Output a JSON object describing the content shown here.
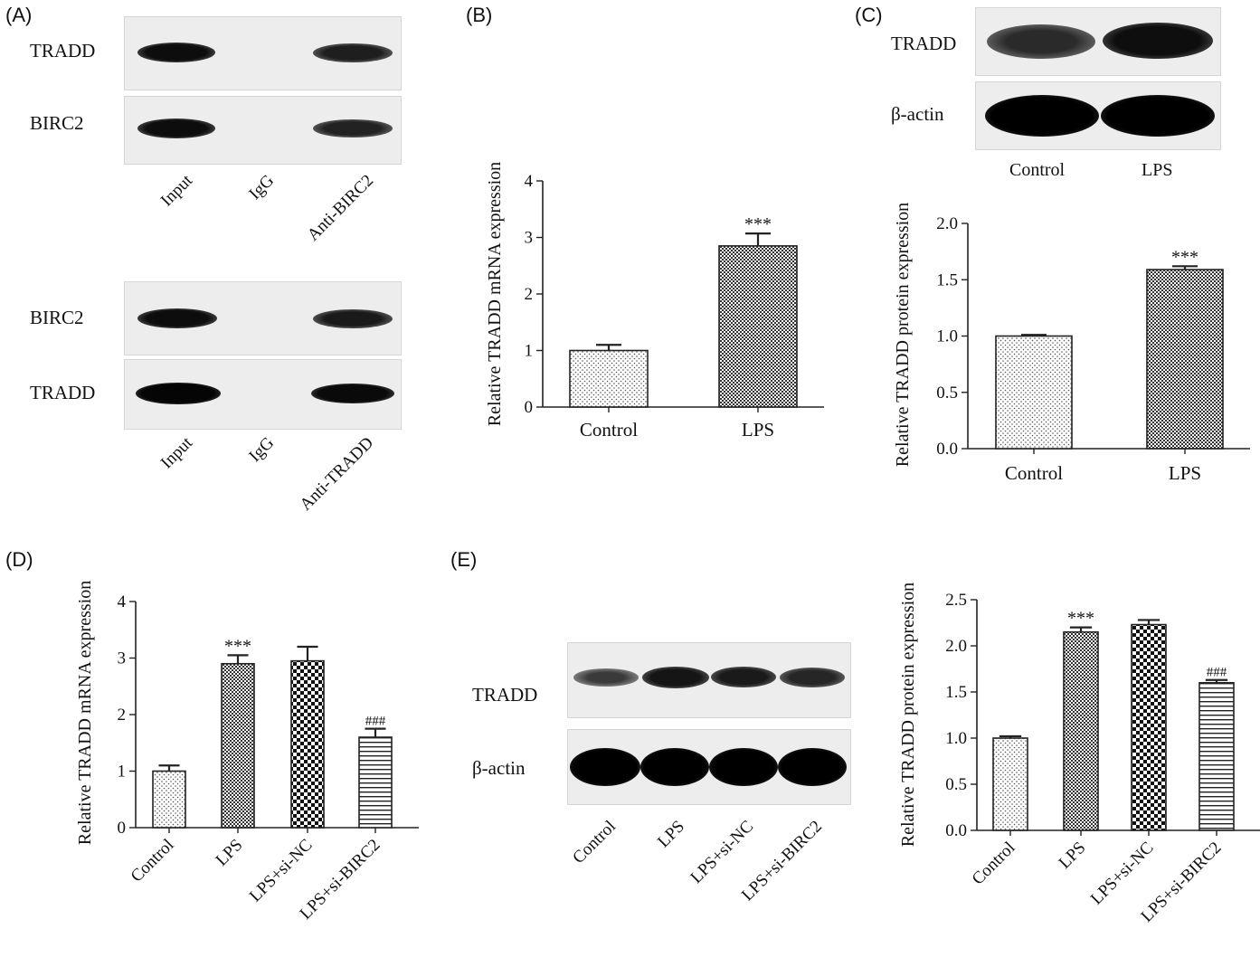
{
  "panels": {
    "A": {
      "label": "(A)",
      "blot1": {
        "rows": [
          "TRADD",
          "BIRC2"
        ],
        "lanes": [
          "Input",
          "IgG",
          "Anti-BIRC2"
        ]
      },
      "blot2": {
        "rows": [
          "BIRC2",
          "TRADD"
        ],
        "lanes": [
          "Input",
          "IgG",
          "Anti-TRADD"
        ]
      }
    },
    "B": {
      "label": "(B)"
    },
    "C": {
      "label": "(C)",
      "blot": {
        "rows": [
          "TRADD",
          "β-actin"
        ],
        "lanes": [
          "Control",
          "LPS"
        ]
      }
    },
    "D": {
      "label": "(D)"
    },
    "E": {
      "label": "(E)",
      "blot": {
        "rows": [
          "TRADD",
          "β-actin"
        ],
        "lanes": [
          "Control",
          "LPS",
          "LPS+si-NC",
          "LPS+si-BIRC2"
        ]
      }
    }
  },
  "chart_data": [
    {
      "id": "B",
      "type": "bar",
      "categories": [
        "Control",
        "LPS"
      ],
      "values": [
        1.0,
        2.85
      ],
      "errors": [
        0.1,
        0.22
      ],
      "annotations": [
        "",
        "***"
      ],
      "patterns": [
        "dots",
        "checker"
      ],
      "ylabel": "Relative TRADD mRNA expression",
      "xlabel": "",
      "ylim": [
        0,
        4
      ],
      "yticks": [
        "0",
        "1",
        "2",
        "3",
        "4"
      ]
    },
    {
      "id": "C",
      "type": "bar",
      "categories": [
        "Control",
        "LPS"
      ],
      "values": [
        1.0,
        1.59
      ],
      "errors": [
        0.01,
        0.03
      ],
      "annotations": [
        "",
        "***"
      ],
      "patterns": [
        "dots",
        "checker"
      ],
      "ylabel": "Relative TRADD protein expression",
      "xlabel": "",
      "ylim": [
        0,
        2.0
      ],
      "yticks": [
        "0.0",
        "0.5",
        "1.0",
        "1.5",
        "2.0"
      ]
    },
    {
      "id": "D",
      "type": "bar",
      "categories": [
        "Control",
        "LPS",
        "LPS+si-NC",
        "LPS+si-BIRC2"
      ],
      "values": [
        1.0,
        2.9,
        2.95,
        1.6
      ],
      "errors": [
        0.1,
        0.15,
        0.25,
        0.15
      ],
      "annotations": [
        "",
        "***",
        "",
        "###"
      ],
      "patterns": [
        "dots",
        "checker",
        "bigchecker",
        "hlines"
      ],
      "ylabel": "Relative TRADD mRNA expression",
      "xlabel": "",
      "ylim": [
        0,
        4
      ],
      "yticks": [
        "0",
        "1",
        "2",
        "3",
        "4"
      ]
    },
    {
      "id": "E",
      "type": "bar",
      "categories": [
        "Control",
        "LPS",
        "LPS+si-NC",
        "LPS+si-BIRC2"
      ],
      "values": [
        1.0,
        2.15,
        2.23,
        1.6
      ],
      "errors": [
        0.02,
        0.05,
        0.05,
        0.03
      ],
      "annotations": [
        "",
        "***",
        "",
        "###"
      ],
      "patterns": [
        "dots",
        "checker",
        "bigchecker",
        "hlines"
      ],
      "ylabel": "Relative TRADD protein expression",
      "xlabel": "",
      "ylim": [
        0,
        2.5
      ],
      "yticks": [
        "0.0",
        "0.5",
        "1.0",
        "1.5",
        "2.0",
        "2.5"
      ]
    }
  ]
}
